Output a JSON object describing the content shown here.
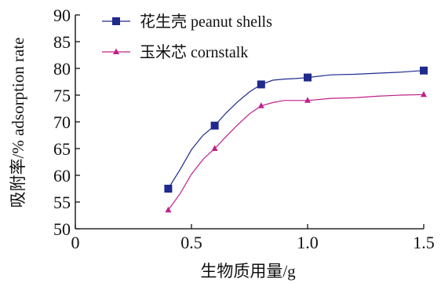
{
  "chart_data": {
    "type": "line",
    "xlabel": "生物质用量/g",
    "ylabel": "吸附率/% adsorption rate",
    "xlim": [
      0,
      1.5
    ],
    "ylim": [
      50,
      90
    ],
    "x_ticks": [
      "0",
      "0.5",
      "1.0",
      "1.5"
    ],
    "y_ticks": [
      "50",
      "55",
      "60",
      "65",
      "70",
      "75",
      "80",
      "85",
      "90"
    ],
    "grid": false,
    "legend_position": "top-left",
    "series": [
      {
        "name": "花生壳 peanut shells",
        "color": "#1f2a8c",
        "marker": "square",
        "points": [
          [
            0.4,
            57.5
          ],
          [
            0.6,
            69.3
          ],
          [
            0.8,
            77.0
          ],
          [
            1.0,
            78.3
          ],
          [
            1.5,
            79.6
          ]
        ],
        "curve": [
          [
            0.4,
            57.5
          ],
          [
            0.45,
            61.0
          ],
          [
            0.5,
            64.8
          ],
          [
            0.55,
            67.5
          ],
          [
            0.6,
            69.3
          ],
          [
            0.65,
            71.7
          ],
          [
            0.7,
            73.8
          ],
          [
            0.75,
            75.6
          ],
          [
            0.8,
            77.0
          ],
          [
            0.85,
            77.8
          ],
          [
            0.9,
            78.0
          ],
          [
            0.95,
            78.1
          ],
          [
            1.0,
            78.3
          ],
          [
            1.1,
            78.8
          ],
          [
            1.2,
            78.9
          ],
          [
            1.3,
            79.1
          ],
          [
            1.4,
            79.3
          ],
          [
            1.5,
            79.6
          ]
        ]
      },
      {
        "name": "玉米芯 cornstalk",
        "color": "#c0208a",
        "marker": "triangle",
        "points": [
          [
            0.4,
            53.5
          ],
          [
            0.6,
            65.0
          ],
          [
            0.8,
            73.0
          ],
          [
            1.0,
            74.0
          ],
          [
            1.5,
            75.1
          ]
        ],
        "curve": [
          [
            0.4,
            53.5
          ],
          [
            0.45,
            56.5
          ],
          [
            0.5,
            60.2
          ],
          [
            0.55,
            63.0
          ],
          [
            0.6,
            65.0
          ],
          [
            0.65,
            67.3
          ],
          [
            0.7,
            69.5
          ],
          [
            0.75,
            71.5
          ],
          [
            0.8,
            73.0
          ],
          [
            0.85,
            73.6
          ],
          [
            0.9,
            74.0
          ],
          [
            0.95,
            74.0
          ],
          [
            1.0,
            74.0
          ],
          [
            1.1,
            74.4
          ],
          [
            1.2,
            74.5
          ],
          [
            1.3,
            74.8
          ],
          [
            1.4,
            75.0
          ],
          [
            1.5,
            75.1
          ]
        ]
      }
    ]
  }
}
